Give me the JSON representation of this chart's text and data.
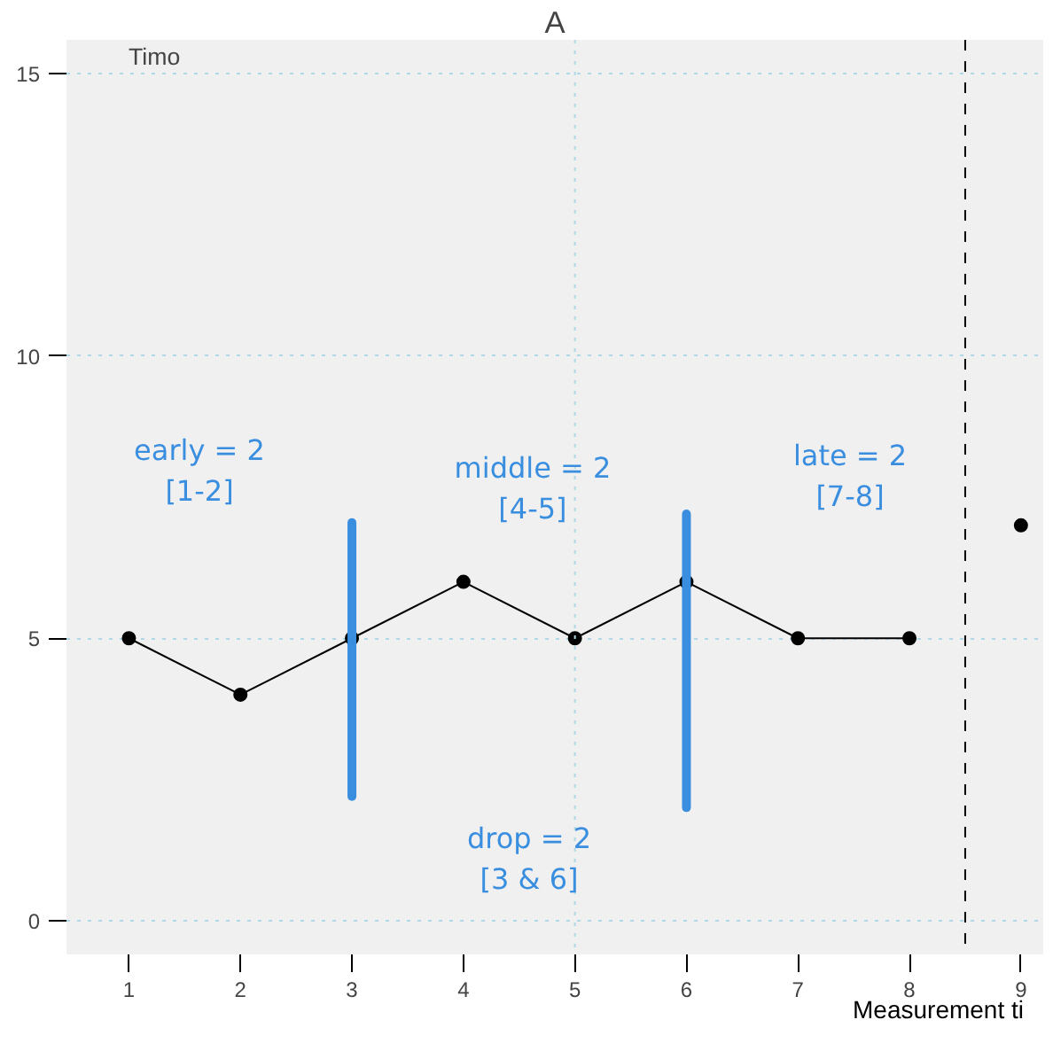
{
  "chart_data": {
    "type": "line",
    "title": "A",
    "xlabel": "Measurement ti",
    "xlim": [
      0.44,
      9.2
    ],
    "xticks": [
      1,
      2,
      3,
      4,
      5,
      6,
      7,
      8,
      9
    ],
    "ylim": [
      -0.6,
      15.6
    ],
    "yticks": [
      0,
      5,
      10,
      15
    ],
    "grid": "y",
    "marker": "circle",
    "line_style": "solid",
    "series": [
      {
        "color": "#000000",
        "x": [
          1,
          2,
          3,
          4,
          5,
          6,
          7,
          8
        ],
        "values": [
          5,
          4,
          5,
          6,
          5,
          6,
          5,
          5
        ]
      },
      {
        "color": "#000000",
        "x": [
          9
        ],
        "values": [
          7
        ]
      },
      {
        "color": "#3a8ee0",
        "x": [
          3,
          3
        ],
        "values": [
          2.2,
          7.05
        ],
        "marker": "none"
      },
      {
        "color": "#3a8ee0",
        "x": [
          6,
          6
        ],
        "values": [
          2.0,
          7.2
        ],
        "marker": "none"
      }
    ],
    "ref_lines": [
      {
        "axis": "x",
        "value": 5,
        "color": "#add8e6",
        "line_style": "dotted"
      },
      {
        "axis": "x",
        "value": 8.5,
        "color": "#000000",
        "line_style": "dashed"
      }
    ],
    "annotations": [
      "Timo",
      "early = 2\n[1-2]",
      "middle = 2\n[4-5]",
      "late = 2\n[7-8]",
      "drop = 2\n[3 & 6]"
    ]
  }
}
